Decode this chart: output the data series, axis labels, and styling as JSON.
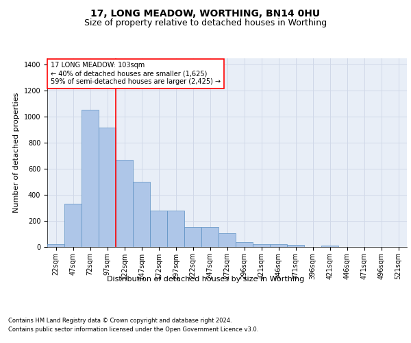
{
  "title": "17, LONG MEADOW, WORTHING, BN14 0HU",
  "subtitle": "Size of property relative to detached houses in Worthing",
  "xlabel": "Distribution of detached houses by size in Worthing",
  "ylabel": "Number of detached properties",
  "categories": [
    "22sqm",
    "47sqm",
    "72sqm",
    "97sqm",
    "122sqm",
    "147sqm",
    "172sqm",
    "197sqm",
    "222sqm",
    "247sqm",
    "272sqm",
    "296sqm",
    "321sqm",
    "346sqm",
    "371sqm",
    "396sqm",
    "421sqm",
    "446sqm",
    "471sqm",
    "496sqm",
    "521sqm"
  ],
  "values": [
    22,
    330,
    1055,
    920,
    670,
    500,
    278,
    278,
    152,
    152,
    103,
    37,
    22,
    22,
    18,
    0,
    12,
    0,
    0,
    0,
    0
  ],
  "bar_color": "#aec6e8",
  "bar_edge_color": "#5a8fc2",
  "bar_width": 1.0,
  "vline_color": "red",
  "vline_pos": 3.5,
  "annotation_line1": "17 LONG MEADOW: 103sqm",
  "annotation_line2": "← 40% of detached houses are smaller (1,625)",
  "annotation_line3": "59% of semi-detached houses are larger (2,425) →",
  "annotation_box_color": "white",
  "annotation_box_edge_color": "red",
  "ylim": [
    0,
    1450
  ],
  "yticks": [
    0,
    200,
    400,
    600,
    800,
    1000,
    1200,
    1400
  ],
  "grid_color": "#d0d8e8",
  "background_color": "#e8eef7",
  "footer_line1": "Contains HM Land Registry data © Crown copyright and database right 2024.",
  "footer_line2": "Contains public sector information licensed under the Open Government Licence v3.0.",
  "title_fontsize": 10,
  "subtitle_fontsize": 9,
  "axis_label_fontsize": 8,
  "tick_fontsize": 7,
  "annotation_fontsize": 7,
  "footer_fontsize": 6
}
